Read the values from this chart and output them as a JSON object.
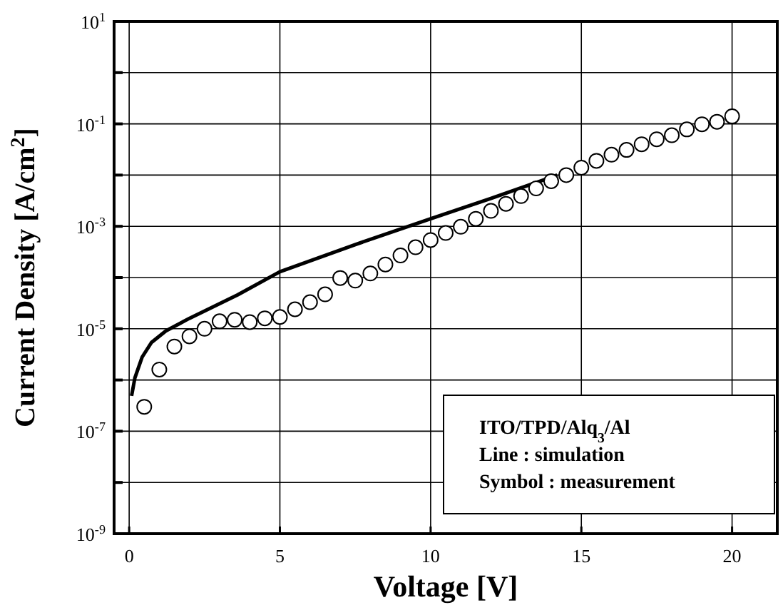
{
  "chart_data": {
    "type": "scatter",
    "xlabel": "Voltage [V]",
    "ylabel": "Current Density [A/cm$^{2}$]",
    "log": "y",
    "grid": true,
    "xlim": [
      -0.5,
      21.5
    ],
    "xticks": [
      0,
      5,
      10,
      15,
      20
    ],
    "ylim": [
      1e-09,
      10
    ],
    "yticks": [
      {
        "value": 10,
        "label": "10$^{1}$"
      },
      {
        "value": 1,
        "label": null
      },
      {
        "value": 0.1,
        "label": "10$^{-1}$"
      },
      {
        "value": 0.01,
        "label": null
      },
      {
        "value": 0.001,
        "label": "10$^{-3}$"
      },
      {
        "value": 0.0001,
        "label": null
      },
      {
        "value": 1e-05,
        "label": "10$^{-5}$"
      },
      {
        "value": 1e-06,
        "label": null
      },
      {
        "value": 1e-07,
        "label": "10$^{-7}$"
      },
      {
        "value": 1e-08,
        "label": null
      },
      {
        "value": 1e-09,
        "label": "10$^{-9}$"
      }
    ],
    "series": [
      {
        "type": "line",
        "color": "#000000",
        "line_style": "solid",
        "marker": "none",
        "x": [
          0.08,
          0.19,
          0.43,
          0.74,
          1.22,
          2.0,
          2.8,
          3.6,
          5,
          7.5,
          10,
          12,
          14.2
        ],
        "values": [
          4.9e-07,
          1.1e-06,
          2.8e-06,
          5.4e-06,
          9.1e-06,
          1.6e-05,
          2.7e-05,
          4.6e-05,
          0.00013,
          0.00044,
          0.0014,
          0.0035,
          0.01
        ]
      },
      {
        "color": "#000000",
        "marker": "circle",
        "x": [
          0.5,
          1,
          1.5,
          2,
          2.5,
          3,
          3.5,
          4,
          4.5,
          5,
          5.5,
          6,
          6.5,
          7,
          7.5,
          8,
          8.5,
          9,
          9.5,
          10,
          10.5,
          11,
          11.5,
          12,
          12.5,
          13,
          13.5,
          14,
          14.5,
          15,
          15.5,
          16,
          16.5,
          17,
          17.5,
          18,
          18.5,
          19,
          19.5,
          20
        ],
        "values": [
          3e-07,
          1.6e-06,
          4.5e-06,
          7.1e-06,
          1e-05,
          1.4e-05,
          1.5e-05,
          1.35e-05,
          1.6e-05,
          1.7e-05,
          2.4e-05,
          3.3e-05,
          4.7e-05,
          9.8e-05,
          8.7e-05,
          0.00012,
          0.00018,
          0.00027,
          0.00039,
          0.00054,
          0.00074,
          0.00098,
          0.0014,
          0.002,
          0.00275,
          0.0039,
          0.0055,
          0.0076,
          0.01,
          0.014,
          0.019,
          0.025,
          0.031,
          0.04,
          0.05,
          0.06,
          0.078,
          0.098,
          0.11,
          0.14
        ]
      }
    ],
    "annotations": [
      "ITO/TPD/Alq$_{3}$/Al",
      "Line : simulation",
      "Symbol : measurement"
    ]
  }
}
